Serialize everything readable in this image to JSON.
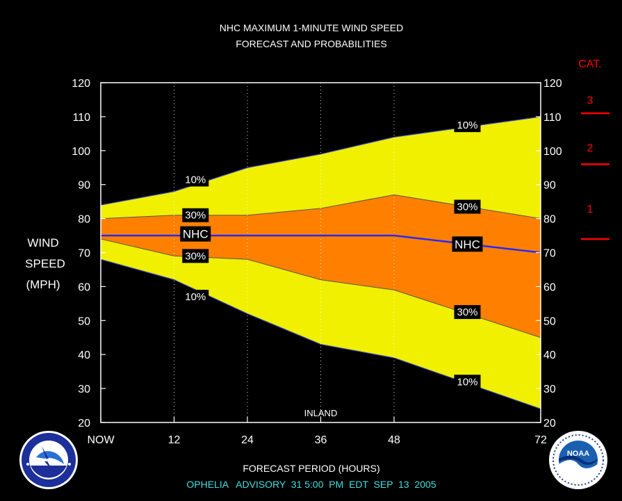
{
  "chart_data": {
    "type": "area",
    "title": "NHC MAXIMUM 1-MINUTE WIND SPEED",
    "subtitle": "FORECAST AND PROBABILITIES",
    "xlabel": "FORECAST PERIOD (HOURS)",
    "ylabel_lines": [
      "WIND",
      "SPEED",
      "(MPH)"
    ],
    "advisory": "OPHELIA   ADVISORY  31 5:00  PM  EDT  SEP  13  2005",
    "xlim": [
      0,
      72
    ],
    "ylim": [
      20,
      120
    ],
    "x_ticks": [
      0,
      12,
      24,
      36,
      48,
      72
    ],
    "x_tick_labels": [
      "NOW",
      "12",
      "24",
      "36",
      "48",
      "72"
    ],
    "y_ticks": [
      20,
      30,
      40,
      50,
      60,
      70,
      80,
      90,
      100,
      110,
      120
    ],
    "grid_x_dotted": [
      12,
      24,
      36,
      48
    ],
    "x": [
      0,
      12,
      24,
      36,
      48,
      72
    ],
    "series": [
      {
        "name": "10%",
        "role": "upper",
        "values": [
          84,
          88,
          95,
          99,
          104,
          110
        ]
      },
      {
        "name": "30%",
        "role": "upper",
        "values": [
          80,
          81,
          81,
          83,
          87,
          80
        ]
      },
      {
        "name": "NHC",
        "role": "forecast",
        "values": [
          75,
          75,
          75,
          75,
          75,
          70
        ]
      },
      {
        "name": "30%",
        "role": "lower",
        "values": [
          74,
          69,
          68,
          62,
          59,
          45
        ]
      },
      {
        "name": "10%",
        "role": "lower",
        "values": [
          68,
          62,
          52,
          43,
          39,
          24
        ]
      }
    ],
    "annotations": [
      {
        "text": "INLAND",
        "x": 36,
        "y": 20
      }
    ],
    "colors": {
      "outer_band": "#f0f000",
      "inner_band": "#ff8000",
      "forecast_line": "#2828ff",
      "category": "#ff0000",
      "advisory": "#40e0e0"
    },
    "categories_panel": {
      "heading": "CAT.",
      "labels": [
        {
          "text": "3",
          "y": 115
        },
        {
          "text": "2",
          "y": 101
        },
        {
          "text": "1",
          "y": 83
        }
      ],
      "thresholds": [
        111,
        96,
        74
      ]
    }
  },
  "logos": {
    "left": {
      "name": "NATIONAL WEATHER SERVICE"
    },
    "right": {
      "name": "NOAA",
      "ring_text": "NATIONAL OCEANIC AND ATMOSPHERIC ADMINISTRATION · U.S. DEPARTMENT OF COMMERCE"
    }
  }
}
